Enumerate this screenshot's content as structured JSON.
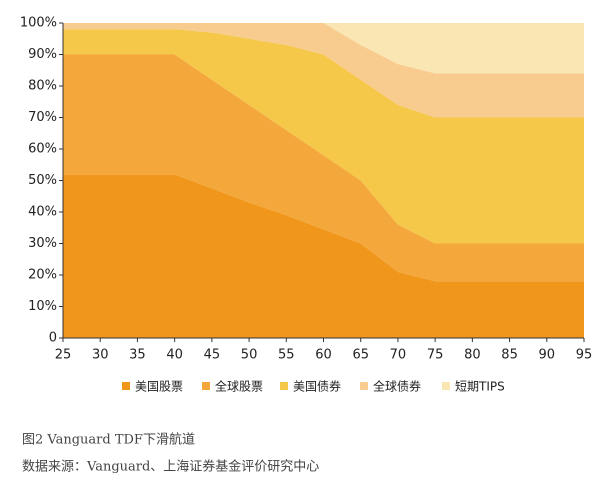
{
  "chart_data": {
    "type": "stacked_area",
    "x": [
      25,
      30,
      35,
      40,
      45,
      50,
      55,
      60,
      65,
      70,
      75,
      80,
      85,
      90,
      95
    ],
    "xlim": [
      25,
      95
    ],
    "xticks": [
      25,
      30,
      35,
      40,
      45,
      50,
      55,
      60,
      65,
      70,
      75,
      80,
      85,
      90,
      95
    ],
    "ylim": [
      0,
      100
    ],
    "yticks": [
      0,
      {
        "value": 10,
        "label": "10%"
      },
      {
        "value": 20,
        "label": "20%"
      },
      {
        "value": 30,
        "label": "30%"
      },
      {
        "value": 40,
        "label": "40%"
      },
      {
        "value": 50,
        "label": "50%"
      },
      {
        "value": 60,
        "label": "60%"
      },
      {
        "value": 70,
        "label": "70%"
      },
      {
        "value": 80,
        "label": "80%"
      },
      {
        "value": 90,
        "label": "90%"
      },
      {
        "value": 100,
        "label": "100%"
      }
    ],
    "series": [
      {
        "name": "美国股票",
        "color": "#f0961a",
        "values": [
          52,
          52,
          52,
          52,
          47.5,
          43,
          39,
          34.5,
          30,
          21,
          18,
          18,
          18,
          18,
          18
        ]
      },
      {
        "name": "全球股票",
        "color": "#f4a73a",
        "values": [
          38,
          38,
          38,
          38,
          34.5,
          31,
          27,
          23.5,
          20,
          15,
          12,
          12,
          12,
          12,
          12
        ]
      },
      {
        "name": "美国债券",
        "color": "#f5c84a",
        "values": [
          8,
          8,
          8,
          8,
          15,
          21,
          27,
          32,
          32,
          38,
          40,
          40,
          40,
          40,
          40
        ]
      },
      {
        "name": "全球债券",
        "color": "#f8cb8f",
        "values": [
          2,
          2,
          2,
          2,
          3,
          5,
          7,
          10,
          11,
          13,
          14,
          14,
          14,
          14,
          14
        ]
      },
      {
        "name": "短期TIPS",
        "color": "#fae6b2",
        "values": [
          0,
          0,
          0,
          0,
          0,
          0,
          0,
          0,
          7,
          13,
          16,
          16,
          16,
          16,
          16
        ]
      }
    ],
    "caption": "图2  Vanguard TDF下滑航道",
    "source": "数据来源：Vanguard、上海证券基金评价研究中心"
  }
}
